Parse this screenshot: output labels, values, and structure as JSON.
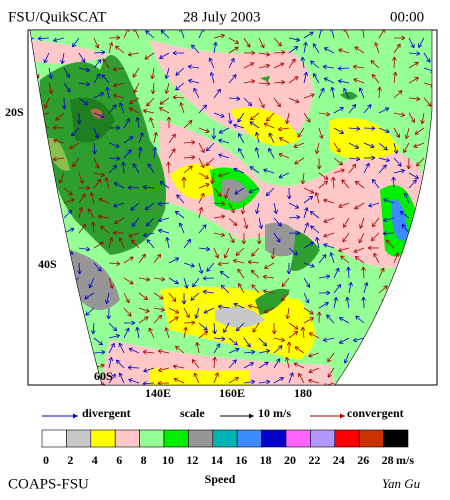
{
  "header": {
    "left": "FSU/QuikSCAT",
    "center": "28 July 2003",
    "right": "00:00"
  },
  "map": {
    "lat_labels": [
      "20S",
      "40S",
      "60S"
    ],
    "lon_labels": [
      "140E",
      "160E",
      "180"
    ]
  },
  "legend": {
    "divergent": "divergent",
    "scale": "scale",
    "scale_value": "10 m/s",
    "convergent": "convergent",
    "divergent_color": "#0000cc",
    "convergent_color": "#aa0000"
  },
  "colorbar": {
    "labels": [
      0,
      2,
      4,
      6,
      8,
      10,
      12,
      14,
      16,
      18,
      20,
      22,
      24,
      26,
      28
    ],
    "unit": "m/s",
    "colors": [
      "#ffffff",
      "#c8c8c8",
      "#ffff00",
      "#ffc8c8",
      "#96ff96",
      "#00ee00",
      "#969696",
      "#00b4b4",
      "#3c8cff",
      "#0000c8",
      "#ff64ff",
      "#b496ff",
      "#ff0000",
      "#c83200",
      "#000000"
    ],
    "title": "Speed"
  },
  "footer": {
    "left": "COAPS-FSU",
    "right": "Yan Gu"
  }
}
